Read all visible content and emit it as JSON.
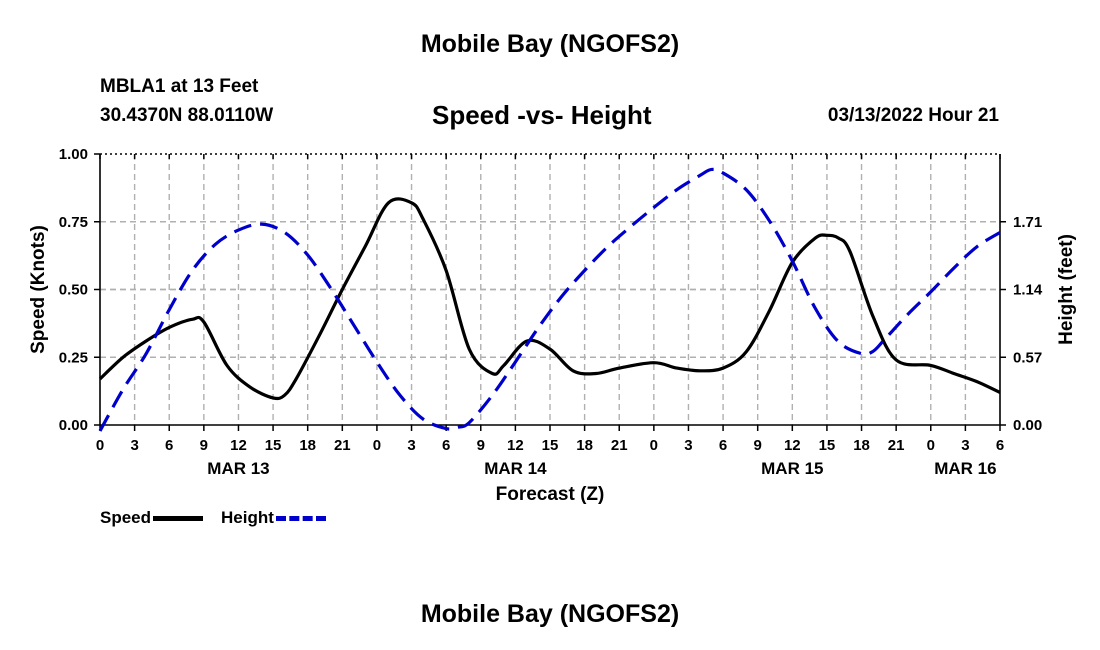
{
  "header": {
    "title": "Mobile Bay (NGOFS2)",
    "station": "MBLA1 at 13 Feet",
    "coords": "30.4370N  88.0110W",
    "chart_title": "Speed -vs- Height",
    "forecast_time": "03/13/2022 Hour 21"
  },
  "footer": {
    "title": "Mobile Bay (NGOFS2)"
  },
  "legend": {
    "speed_label": "Speed",
    "height_label": "Height"
  },
  "colors": {
    "speed": "#000000",
    "height": "#0000cc",
    "grid": "#b0b0b0"
  },
  "chart_data": {
    "type": "line",
    "title": "Speed -vs- Height",
    "xlabel": "Forecast (Z)",
    "ylabel": "Speed (Knots)",
    "y2label": "Height (feet)",
    "x_range_hours": [
      0,
      78
    ],
    "ylim": [
      0,
      1.0
    ],
    "y2lim": [
      -0.0,
      2.28
    ],
    "x_ticks": [
      {
        "h": 0,
        "label": "0"
      },
      {
        "h": 3,
        "label": "3"
      },
      {
        "h": 6,
        "label": "6"
      },
      {
        "h": 9,
        "label": "9"
      },
      {
        "h": 12,
        "label": "12"
      },
      {
        "h": 15,
        "label": "15"
      },
      {
        "h": 18,
        "label": "18"
      },
      {
        "h": 21,
        "label": "21"
      },
      {
        "h": 24,
        "label": "0"
      },
      {
        "h": 27,
        "label": "3"
      },
      {
        "h": 30,
        "label": "6"
      },
      {
        "h": 33,
        "label": "9"
      },
      {
        "h": 36,
        "label": "12"
      },
      {
        "h": 39,
        "label": "15"
      },
      {
        "h": 42,
        "label": "18"
      },
      {
        "h": 45,
        "label": "21"
      },
      {
        "h": 48,
        "label": "0"
      },
      {
        "h": 51,
        "label": "3"
      },
      {
        "h": 54,
        "label": "6"
      },
      {
        "h": 57,
        "label": "9"
      },
      {
        "h": 60,
        "label": "12"
      },
      {
        "h": 63,
        "label": "15"
      },
      {
        "h": 66,
        "label": "18"
      },
      {
        "h": 69,
        "label": "21"
      },
      {
        "h": 72,
        "label": "0"
      },
      {
        "h": 75,
        "label": "3"
      },
      {
        "h": 78,
        "label": "6"
      }
    ],
    "date_labels": [
      {
        "h": 12,
        "label": "MAR 13"
      },
      {
        "h": 36,
        "label": "MAR 14"
      },
      {
        "h": 60,
        "label": "MAR 15"
      },
      {
        "h": 75,
        "label": "MAR 16"
      }
    ],
    "y_ticks": [
      {
        "v": 0.0,
        "label": "0.00"
      },
      {
        "v": 0.25,
        "label": "0.25"
      },
      {
        "v": 0.5,
        "label": "0.50"
      },
      {
        "v": 0.75,
        "label": "0.75"
      },
      {
        "v": 1.0,
        "label": "1.00"
      }
    ],
    "y2_ticks": [
      {
        "v": 0.0,
        "label": "0.00"
      },
      {
        "v": 0.57,
        "label": "0.57"
      },
      {
        "v": 1.14,
        "label": "1.14"
      },
      {
        "v": 1.71,
        "label": "1.71"
      }
    ],
    "series": [
      {
        "name": "Speed",
        "axis": "left",
        "x": [
          0,
          2,
          4,
          6,
          8,
          9,
          11,
          13,
          15,
          16,
          17,
          19,
          21,
          23,
          25,
          27,
          28,
          30,
          32,
          34,
          35,
          37,
          39,
          41,
          43,
          45,
          48,
          50,
          52,
          54,
          56,
          58,
          60,
          62,
          63,
          64,
          65,
          67,
          69,
          72,
          74,
          76,
          78
        ],
        "values": [
          0.17,
          0.25,
          0.31,
          0.36,
          0.39,
          0.38,
          0.22,
          0.14,
          0.1,
          0.11,
          0.17,
          0.33,
          0.5,
          0.66,
          0.82,
          0.82,
          0.76,
          0.57,
          0.28,
          0.19,
          0.22,
          0.31,
          0.28,
          0.2,
          0.19,
          0.21,
          0.23,
          0.21,
          0.2,
          0.21,
          0.27,
          0.42,
          0.6,
          0.69,
          0.7,
          0.69,
          0.64,
          0.4,
          0.24,
          0.22,
          0.19,
          0.16,
          0.12
        ]
      },
      {
        "name": "Height",
        "axis": "right",
        "x": [
          0,
          2,
          4,
          6,
          8,
          10,
          12,
          14,
          16,
          18,
          20,
          22,
          24,
          26,
          28,
          30,
          31,
          32,
          34,
          36,
          38,
          40,
          42,
          44,
          46,
          48,
          50,
          52,
          53,
          54,
          56,
          58,
          60,
          62,
          64,
          66,
          67,
          68,
          70,
          72,
          74,
          76,
          78
        ],
        "values": [
          -0.05,
          0.3,
          0.6,
          0.97,
          1.3,
          1.52,
          1.64,
          1.69,
          1.62,
          1.43,
          1.15,
          0.84,
          0.53,
          0.25,
          0.05,
          -0.03,
          -0.02,
          0.02,
          0.25,
          0.53,
          0.82,
          1.08,
          1.3,
          1.5,
          1.67,
          1.83,
          1.98,
          2.1,
          2.15,
          2.12,
          1.98,
          1.72,
          1.38,
          0.98,
          0.7,
          0.6,
          0.62,
          0.72,
          0.93,
          1.12,
          1.32,
          1.5,
          1.62
        ]
      }
    ]
  }
}
